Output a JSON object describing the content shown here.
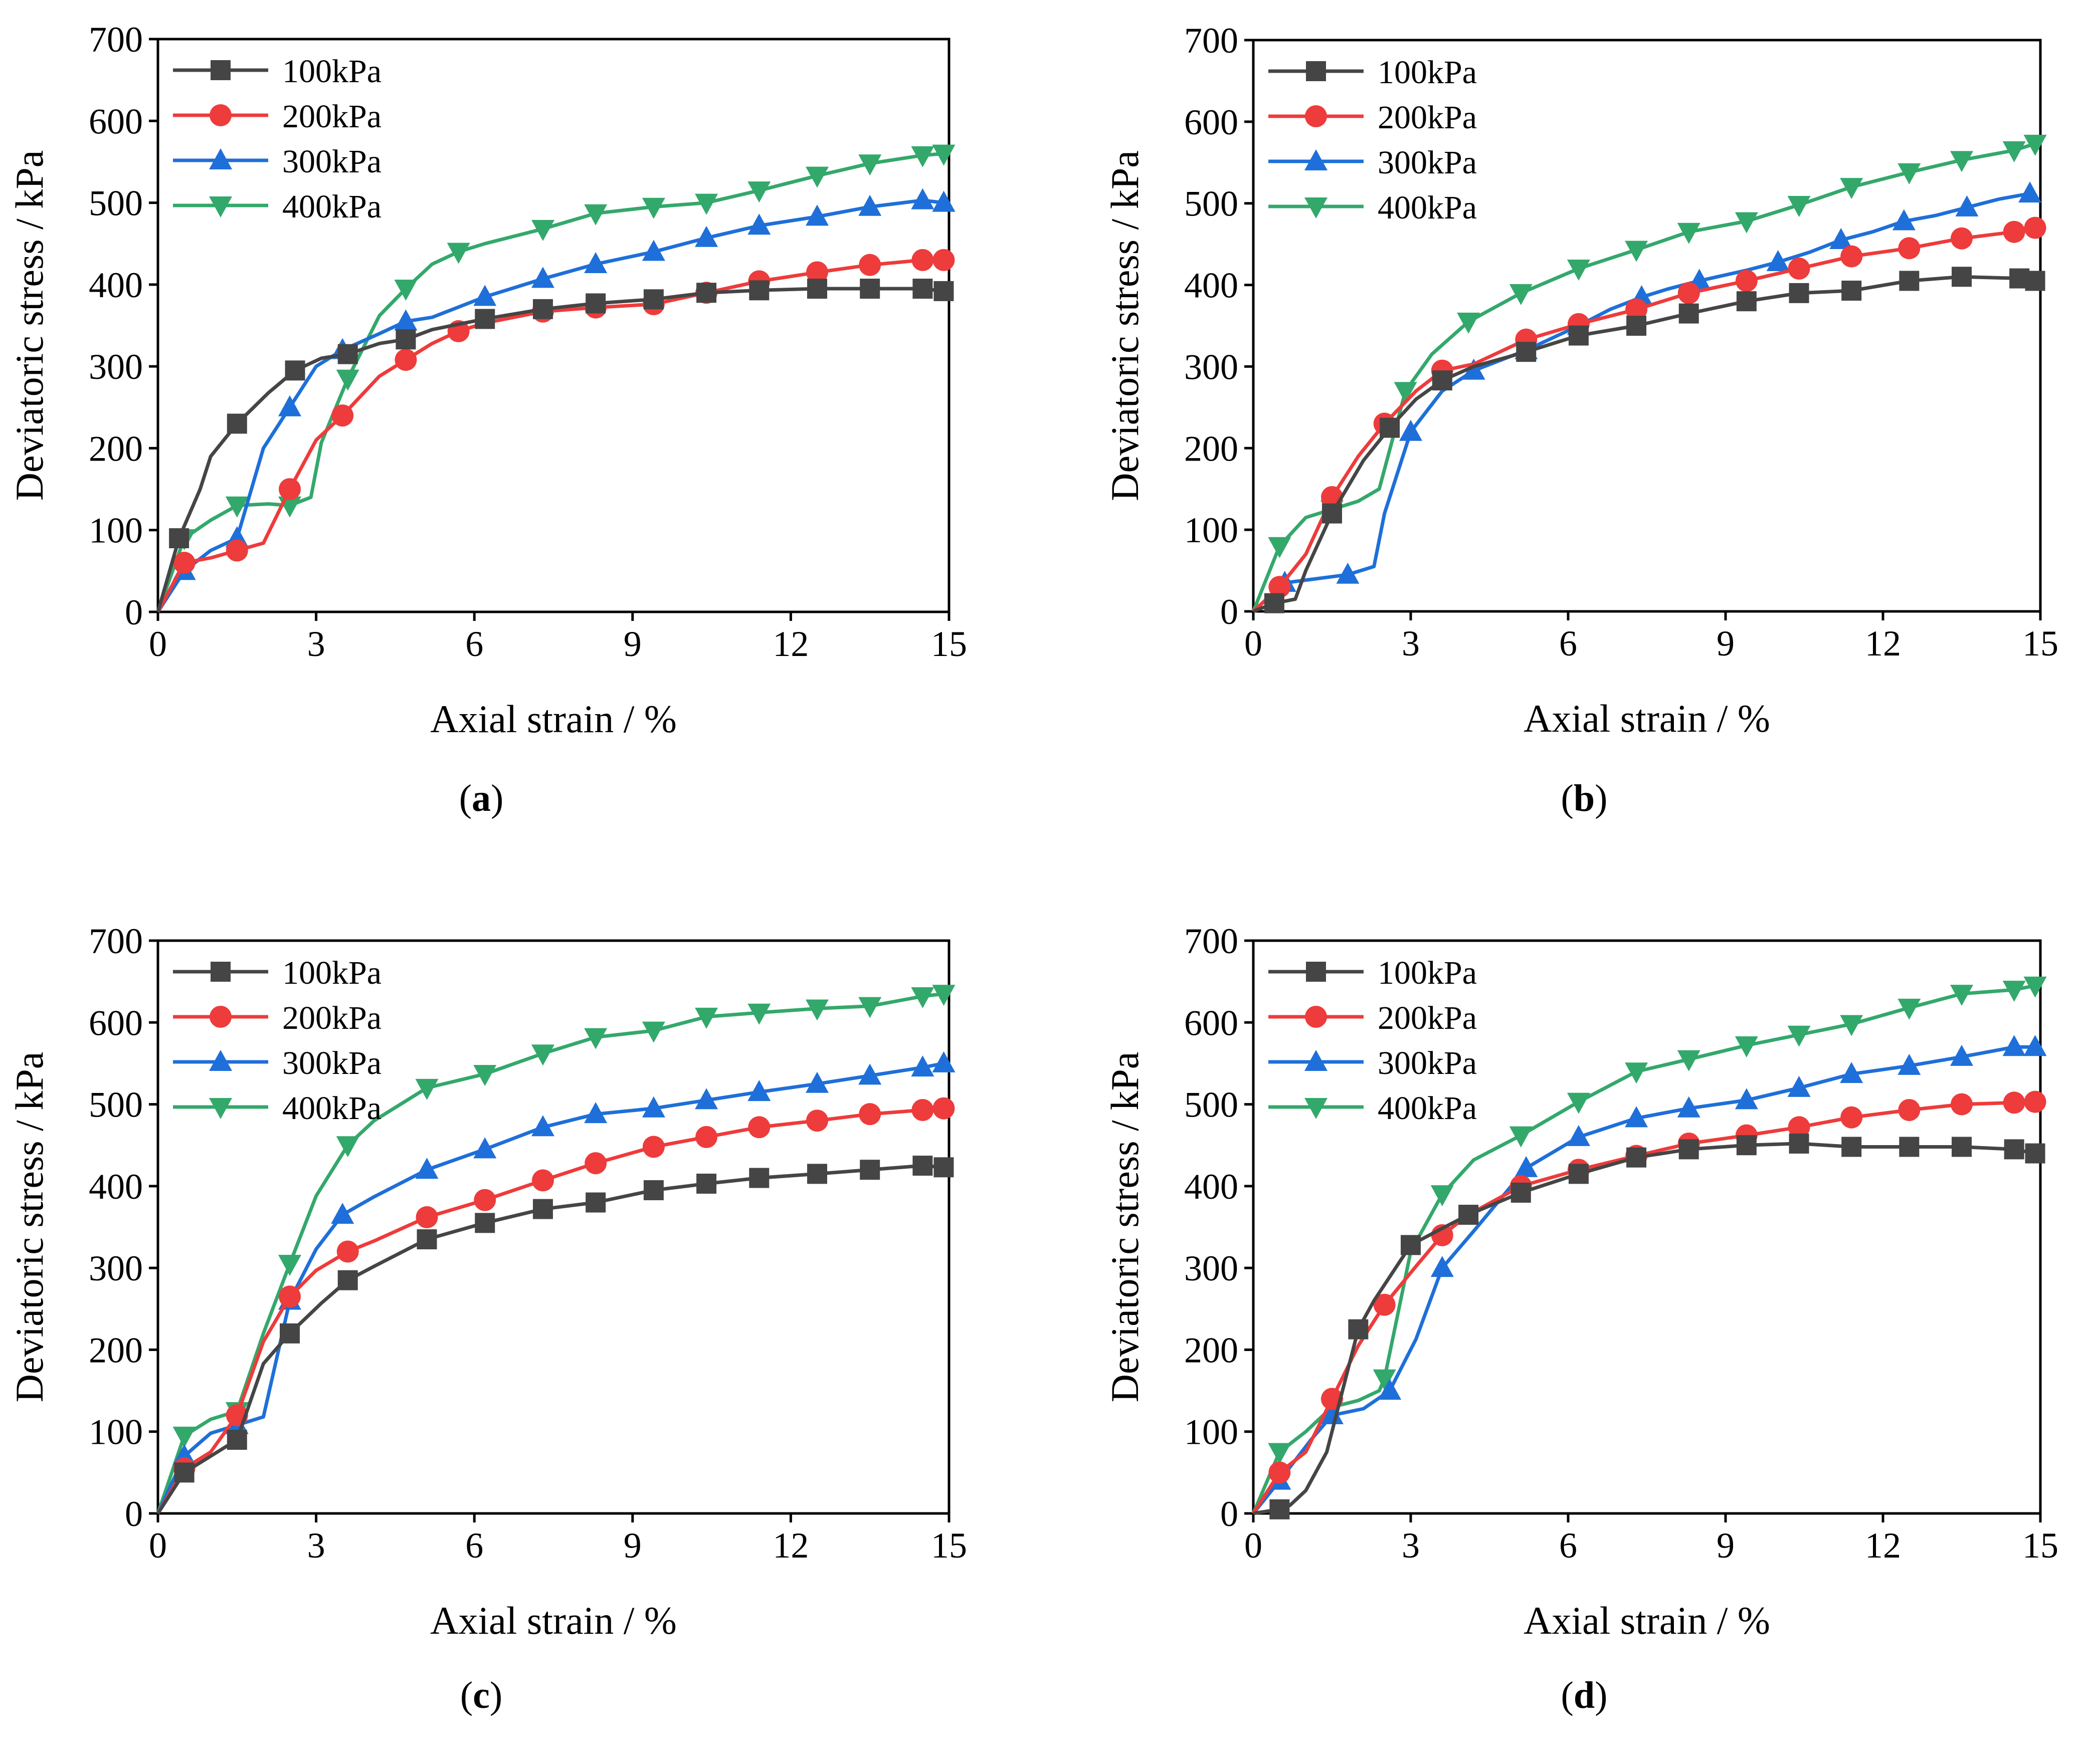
{
  "figure": {
    "colors": {
      "100kPa": "#454545",
      "200kPa": "#ee3b3b",
      "300kPa": "#1e6fd9",
      "400kPa": "#33a86b"
    },
    "markers": {
      "100kPa": "square",
      "200kPa": "circle",
      "300kPa": "triangle-up",
      "400kPa": "triangle-down"
    }
  },
  "chart_data": [
    {
      "type": "line",
      "panel": "a",
      "caption_letter": "a",
      "xlabel": "Axial strain / %",
      "ylabel": "Deviatoric stress / kPa",
      "xlim": [
        0,
        15
      ],
      "ylim": [
        0,
        700
      ],
      "xticks": [
        "0",
        "3",
        "6",
        "9",
        "12",
        "15"
      ],
      "yticks": [
        "0",
        "100",
        "200",
        "300",
        "400",
        "500",
        "600",
        "700"
      ],
      "legend_position": "top-left",
      "series": [
        {
          "name": "100kPa",
          "x": [
            0,
            0.4,
            0.8,
            1.0,
            1.5,
            2.1,
            2.6,
            3.1,
            3.6,
            4.2,
            4.7,
            5.2,
            6.2,
            7.3,
            8.3,
            9.4,
            10.4,
            11.4,
            12.5,
            13.5,
            14.5,
            14.9
          ],
          "y": [
            0,
            90,
            150,
            190,
            230,
            268,
            295,
            310,
            315,
            328,
            333,
            345,
            358,
            370,
            377,
            382,
            390,
            393,
            395,
            395,
            395,
            392
          ]
        },
        {
          "name": "200kPa",
          "x": [
            0,
            0.5,
            1.0,
            1.5,
            2.0,
            2.5,
            3.0,
            3.5,
            4.2,
            4.7,
            5.2,
            5.7,
            6.2,
            7.3,
            8.3,
            9.4,
            10.4,
            11.4,
            12.5,
            13.5,
            14.5,
            14.9
          ],
          "y": [
            0,
            60,
            66,
            75,
            84,
            150,
            210,
            240,
            288,
            308,
            328,
            343,
            353,
            367,
            372,
            376,
            390,
            404,
            415,
            424,
            430,
            430
          ]
        },
        {
          "name": "300kPa",
          "x": [
            0,
            0.5,
            1.0,
            1.5,
            2.0,
            2.5,
            3.0,
            3.5,
            4.2,
            4.7,
            5.2,
            6.2,
            7.3,
            8.3,
            9.4,
            10.4,
            11.4,
            12.5,
            13.5,
            14.5,
            14.9
          ],
          "y": [
            0,
            50,
            75,
            90,
            200,
            250,
            300,
            320,
            340,
            355,
            360,
            385,
            407,
            425,
            440,
            457,
            472,
            483,
            495,
            503,
            500
          ]
        },
        {
          "name": "400kPa",
          "x": [
            0,
            0.5,
            1.0,
            1.5,
            2.1,
            2.5,
            2.9,
            3.1,
            3.6,
            4.2,
            4.7,
            5.2,
            5.7,
            6.2,
            7.3,
            8.3,
            9.4,
            10.4,
            11.4,
            12.5,
            13.5,
            14.5,
            14.9
          ],
          "y": [
            0,
            90,
            112,
            130,
            132,
            130,
            140,
            207,
            285,
            362,
            395,
            425,
            440,
            450,
            468,
            487,
            495,
            500,
            515,
            533,
            548,
            558,
            560
          ]
        }
      ]
    },
    {
      "type": "line",
      "panel": "b",
      "caption_letter": "b",
      "xlabel": "Axial strain / %",
      "ylabel": "Deviatoric stress / kPa",
      "xlim": [
        0,
        15
      ],
      "ylim": [
        0,
        700
      ],
      "xticks": [
        "0",
        "3",
        "6",
        "9",
        "12",
        "15"
      ],
      "yticks": [
        "0",
        "100",
        "200",
        "300",
        "400",
        "500",
        "600",
        "700"
      ],
      "legend_position": "top-left",
      "series": [
        {
          "name": "100kPa",
          "x": [
            0,
            0.4,
            0.8,
            1.0,
            1.5,
            2.1,
            2.6,
            3.1,
            3.6,
            4.2,
            5.2,
            6.2,
            7.3,
            8.3,
            9.4,
            10.4,
            11.4,
            12.5,
            13.5,
            14.6,
            14.9
          ],
          "y": [
            0,
            10,
            15,
            50,
            120,
            185,
            225,
            260,
            283,
            300,
            318,
            338,
            350,
            365,
            380,
            390,
            393,
            405,
            410,
            408,
            405
          ]
        },
        {
          "name": "200kPa",
          "x": [
            0,
            0.5,
            1.0,
            1.5,
            2.0,
            2.5,
            3.1,
            3.6,
            4.2,
            5.2,
            6.2,
            7.3,
            8.3,
            9.4,
            10.4,
            11.4,
            12.5,
            13.5,
            14.5,
            14.9
          ],
          "y": [
            0,
            30,
            70,
            140,
            190,
            230,
            270,
            295,
            303,
            333,
            352,
            370,
            390,
            405,
            420,
            435,
            445,
            457,
            465,
            470
          ]
        },
        {
          "name": "300kPa",
          "x": [
            0,
            0.6,
            1.2,
            1.8,
            2.3,
            2.5,
            3.0,
            3.6,
            4.2,
            5.2,
            6.2,
            6.8,
            7.4,
            7.9,
            8.5,
            9.4,
            10.0,
            10.6,
            11.2,
            11.8,
            12.4,
            13.0,
            13.6,
            14.2,
            14.8
          ],
          "y": [
            0,
            35,
            40,
            45,
            55,
            120,
            220,
            270,
            295,
            320,
            350,
            370,
            385,
            395,
            405,
            418,
            428,
            440,
            455,
            465,
            478,
            485,
            495,
            505,
            512
          ]
        },
        {
          "name": "400kPa",
          "x": [
            0,
            0.5,
            1.0,
            1.5,
            2.0,
            2.4,
            2.9,
            3.4,
            4.1,
            5.1,
            6.2,
            7.3,
            8.3,
            9.4,
            10.4,
            11.4,
            12.5,
            13.5,
            14.5,
            14.9
          ],
          "y": [
            0,
            80,
            115,
            125,
            135,
            150,
            270,
            315,
            355,
            390,
            420,
            443,
            465,
            478,
            498,
            520,
            538,
            553,
            565,
            573
          ]
        }
      ]
    },
    {
      "type": "line",
      "panel": "c",
      "caption_letter": "c",
      "xlabel": "Axial strain / %",
      "ylabel": "Deviatoric stress / kPa",
      "xlim": [
        0,
        15
      ],
      "ylim": [
        0,
        700
      ],
      "xticks": [
        "0",
        "3",
        "6",
        "9",
        "12",
        "15"
      ],
      "yticks": [
        "0",
        "100",
        "200",
        "300",
        "400",
        "500",
        "600",
        "700"
      ],
      "legend_position": "top-left",
      "series": [
        {
          "name": "100kPa",
          "x": [
            0,
            0.5,
            1.0,
            1.5,
            2.0,
            2.5,
            3.1,
            3.6,
            4.1,
            5.1,
            6.2,
            7.3,
            8.3,
            9.4,
            10.4,
            11.4,
            12.5,
            13.5,
            14.5,
            14.9
          ],
          "y": [
            0,
            50,
            70,
            90,
            183,
            220,
            257,
            285,
            302,
            335,
            355,
            372,
            380,
            395,
            403,
            410,
            415,
            420,
            425,
            423
          ]
        },
        {
          "name": "200kPa",
          "x": [
            0,
            0.5,
            1.0,
            1.5,
            2.0,
            2.5,
            3.0,
            3.6,
            4.1,
            5.1,
            6.2,
            7.3,
            8.3,
            9.4,
            10.4,
            11.4,
            12.5,
            13.5,
            14.5,
            14.9
          ],
          "y": [
            0,
            55,
            75,
            120,
            210,
            265,
            297,
            320,
            333,
            362,
            383,
            407,
            428,
            448,
            460,
            472,
            480,
            488,
            493,
            495
          ]
        },
        {
          "name": "300kPa",
          "x": [
            0,
            0.5,
            1.0,
            1.5,
            2.0,
            2.5,
            3.0,
            3.5,
            4.1,
            5.1,
            6.2,
            7.3,
            8.3,
            9.4,
            10.4,
            11.4,
            12.5,
            13.5,
            14.5,
            14.9
          ],
          "y": [
            0,
            70,
            98,
            108,
            118,
            260,
            323,
            365,
            387,
            420,
            445,
            472,
            488,
            495,
            505,
            515,
            525,
            535,
            545,
            550
          ]
        },
        {
          "name": "400kPa",
          "x": [
            0,
            0.5,
            1.0,
            1.5,
            2.0,
            2.5,
            3.0,
            3.6,
            4.1,
            5.1,
            6.2,
            7.3,
            8.3,
            9.4,
            10.4,
            11.4,
            12.5,
            13.5,
            14.5,
            14.9
          ],
          "y": [
            0,
            95,
            115,
            125,
            220,
            305,
            388,
            450,
            480,
            520,
            537,
            562,
            582,
            590,
            607,
            612,
            617,
            620,
            632,
            635
          ]
        }
      ]
    },
    {
      "type": "line",
      "panel": "d",
      "caption_letter": "d",
      "xlabel": "Axial strain / %",
      "ylabel": "Deviatoric stress / kPa",
      "xlim": [
        0,
        15
      ],
      "ylim": [
        0,
        700
      ],
      "xticks": [
        "0",
        "3",
        "6",
        "9",
        "12",
        "15"
      ],
      "yticks": [
        "0",
        "100",
        "200",
        "300",
        "400",
        "500",
        "600",
        "700"
      ],
      "legend_position": "top-left",
      "series": [
        {
          "name": "100kPa",
          "x": [
            0,
            0.5,
            0.7,
            1.0,
            1.4,
            2.0,
            2.3,
            3.0,
            3.5,
            4.1,
            5.1,
            6.2,
            7.3,
            8.3,
            9.4,
            10.4,
            11.4,
            12.5,
            13.5,
            14.5,
            14.9
          ],
          "y": [
            0,
            5,
            10,
            28,
            75,
            225,
            260,
            328,
            345,
            365,
            392,
            415,
            435,
            445,
            450,
            452,
            448,
            448,
            448,
            445,
            440
          ]
        },
        {
          "name": "200kPa",
          "x": [
            0,
            0.5,
            1.0,
            1.5,
            2.0,
            2.5,
            3.1,
            3.6,
            4.1,
            5.1,
            6.2,
            7.3,
            8.3,
            9.4,
            10.4,
            11.4,
            12.5,
            13.5,
            14.5,
            14.9
          ],
          "y": [
            0,
            50,
            75,
            140,
            205,
            255,
            302,
            340,
            365,
            400,
            420,
            437,
            452,
            462,
            472,
            484,
            493,
            500,
            502,
            503
          ]
        },
        {
          "name": "300kPa",
          "x": [
            0,
            0.5,
            1.1,
            1.5,
            2.1,
            2.6,
            3.1,
            3.6,
            4.2,
            5.2,
            6.2,
            7.3,
            8.3,
            9.4,
            10.4,
            11.4,
            12.5,
            13.5,
            14.5,
            14.9
          ],
          "y": [
            0,
            40,
            90,
            120,
            128,
            150,
            213,
            300,
            345,
            422,
            460,
            483,
            495,
            505,
            520,
            537,
            547,
            558,
            570,
            570
          ]
        },
        {
          "name": "400kPa",
          "x": [
            0,
            0.5,
            1.0,
            1.5,
            2.0,
            2.4,
            2.5,
            3.0,
            3.6,
            4.2,
            5.1,
            6.2,
            7.3,
            8.3,
            9.4,
            10.4,
            11.4,
            12.5,
            13.5,
            14.5,
            14.9
          ],
          "y": [
            0,
            75,
            100,
            130,
            138,
            150,
            165,
            320,
            390,
            432,
            462,
            503,
            540,
            555,
            572,
            585,
            598,
            618,
            635,
            640,
            645
          ]
        }
      ]
    }
  ]
}
